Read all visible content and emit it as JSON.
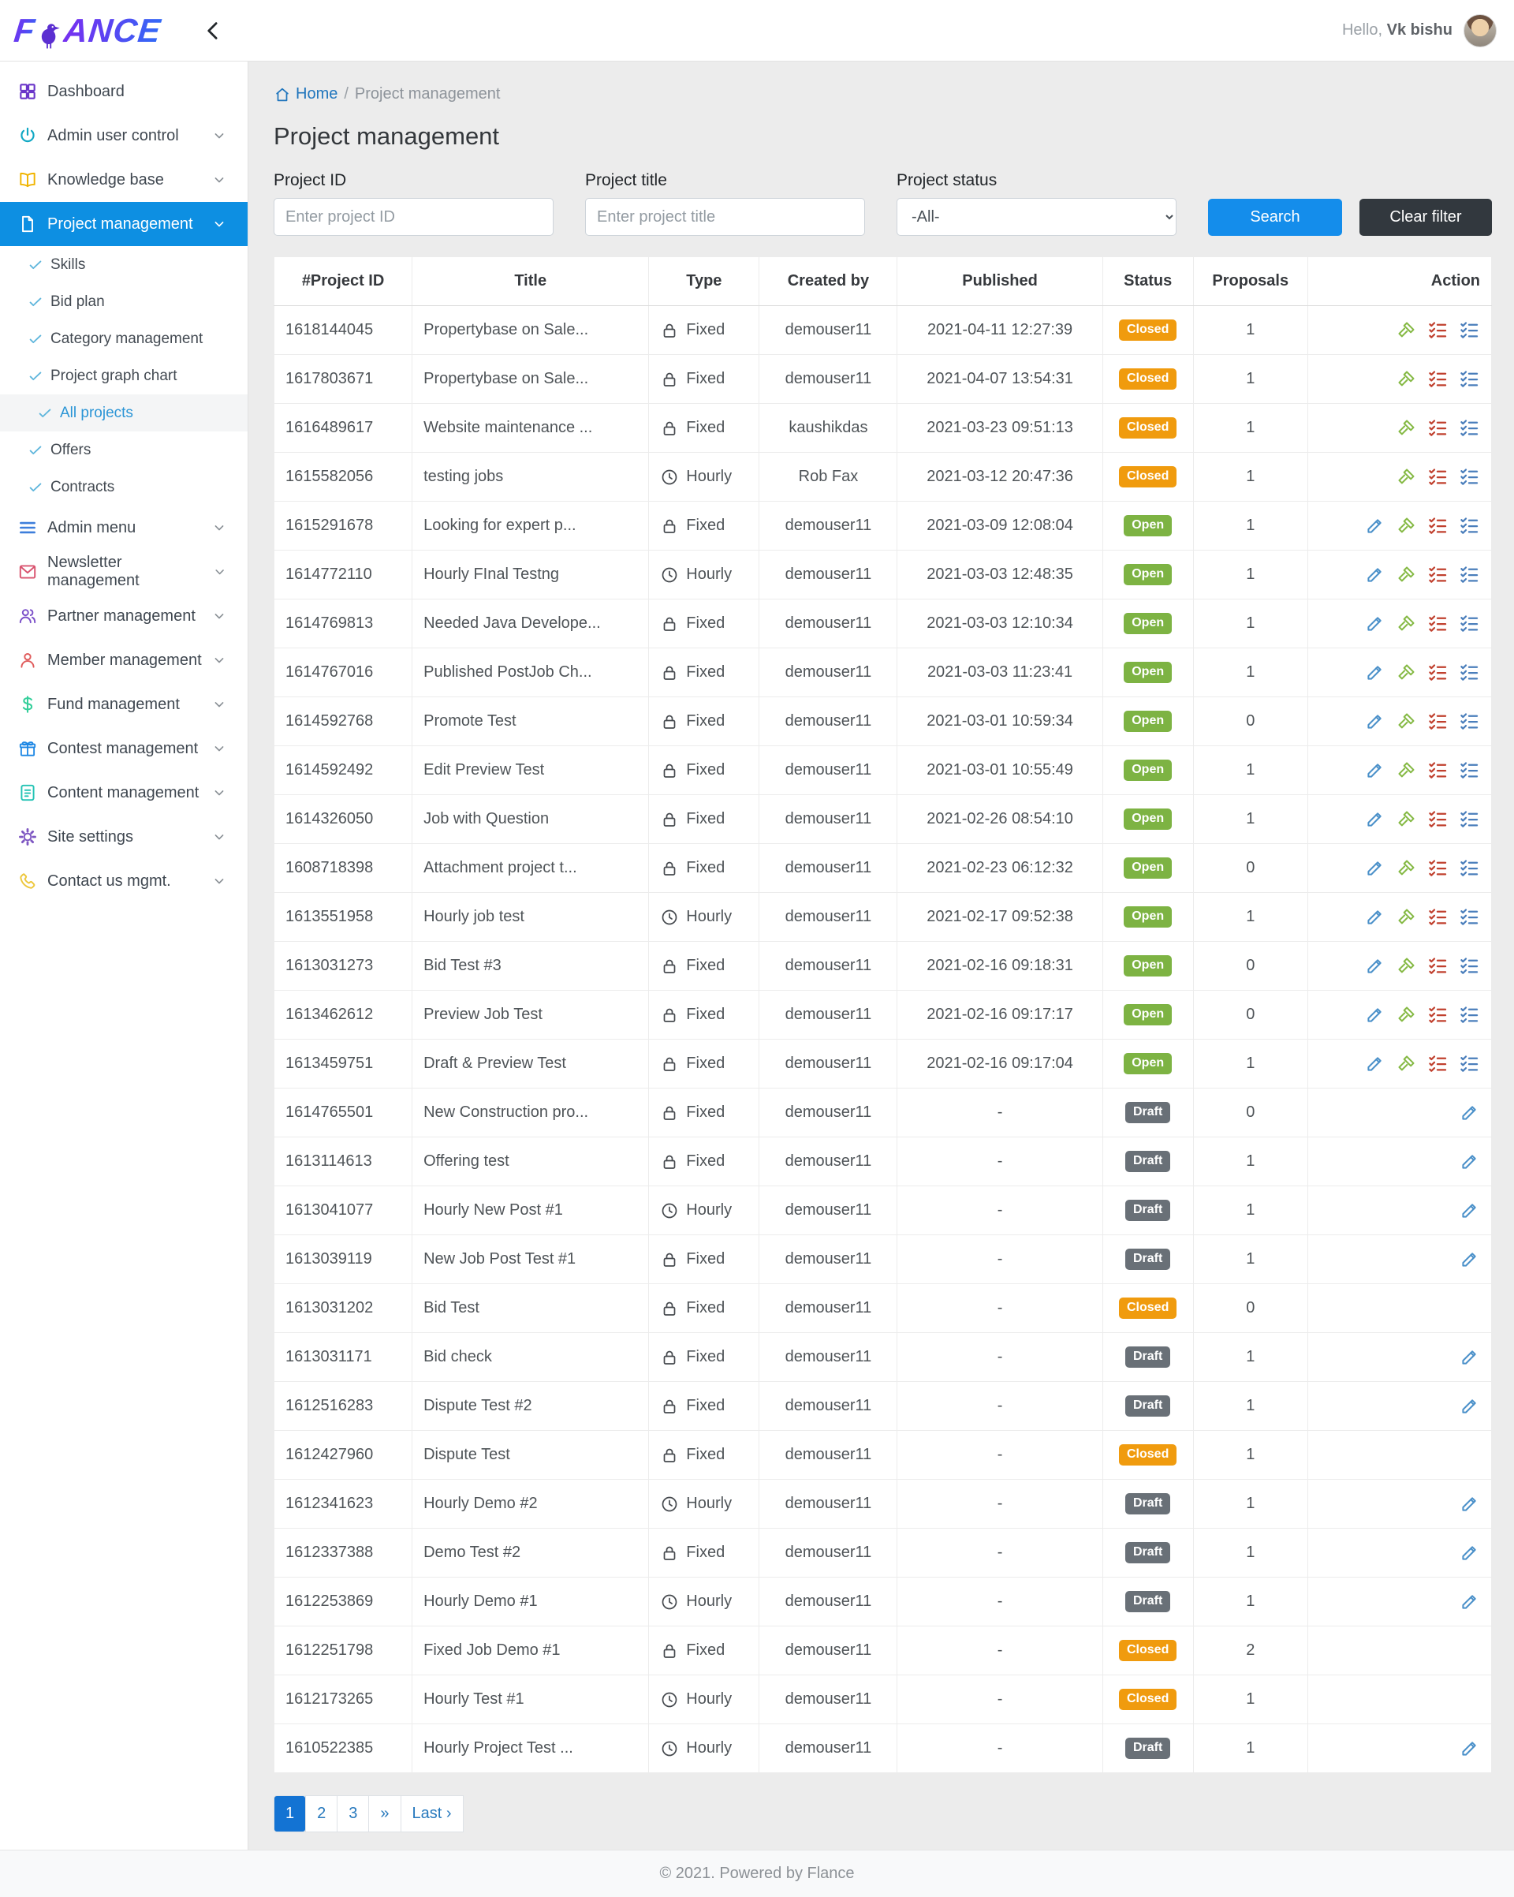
{
  "header": {
    "logo_prefix": "F",
    "logo_suffix": "ANCE",
    "greeting_prefix": "Hello, ",
    "username": "Vk bishu"
  },
  "breadcrumb": {
    "home_label": "Home",
    "separator": "/",
    "current": "Project management"
  },
  "page": {
    "title": "Project management"
  },
  "filters": {
    "project_id_label": "Project ID",
    "project_id_placeholder": "Enter project ID",
    "project_id_value": "",
    "project_title_label": "Project title",
    "project_title_placeholder": "Enter project title",
    "project_title_value": "",
    "project_status_label": "Project status",
    "project_status_value": "-All-",
    "search_label": "Search",
    "clear_label": "Clear filter"
  },
  "sidebar": {
    "items": [
      {
        "label": "Dashboard",
        "icon": "dashboard",
        "expandable": false
      },
      {
        "label": "Admin user control",
        "icon": "power",
        "expandable": true
      },
      {
        "label": "Knowledge base",
        "icon": "book",
        "expandable": true
      },
      {
        "label": "Project management",
        "icon": "file",
        "expandable": true,
        "active": true,
        "children": [
          {
            "label": "Skills"
          },
          {
            "label": "Bid plan"
          },
          {
            "label": "Category management"
          },
          {
            "label": "Project graph chart"
          },
          {
            "label": "All projects",
            "active": true
          },
          {
            "label": "Offers"
          },
          {
            "label": "Contracts"
          }
        ]
      },
      {
        "label": "Admin menu",
        "icon": "hamburger",
        "expandable": true
      },
      {
        "label": "Newsletter management",
        "icon": "mail",
        "expandable": true
      },
      {
        "label": "Partner management",
        "icon": "users",
        "expandable": true
      },
      {
        "label": "Member management",
        "icon": "user",
        "expandable": true
      },
      {
        "label": "Fund management",
        "icon": "dollar",
        "expandable": true
      },
      {
        "label": "Contest management",
        "icon": "gift",
        "expandable": true
      },
      {
        "label": "Content management",
        "icon": "document",
        "expandable": true
      },
      {
        "label": "Site settings",
        "icon": "gear",
        "expandable": true
      },
      {
        "label": "Contact us mgmt.",
        "icon": "phone",
        "expandable": true
      }
    ]
  },
  "table": {
    "columns": [
      "#Project ID",
      "Title",
      "Type",
      "Created by",
      "Published",
      "Status",
      "Proposals",
      "Action"
    ],
    "rows": [
      {
        "id": "1618144045",
        "title": "Propertybase on Sale...",
        "type": "Fixed",
        "created_by": "demouser11",
        "published": "2021-04-11 12:27:39",
        "status": "Closed",
        "proposals": "1",
        "actions": [
          "gavel",
          "checklist-red",
          "checklist-blue"
        ]
      },
      {
        "id": "1617803671",
        "title": "Propertybase on Sale...",
        "type": "Fixed",
        "created_by": "demouser11",
        "published": "2021-04-07 13:54:31",
        "status": "Closed",
        "proposals": "1",
        "actions": [
          "gavel",
          "checklist-red",
          "checklist-blue"
        ]
      },
      {
        "id": "1616489617",
        "title": "Website maintenance ...",
        "type": "Fixed",
        "created_by": "kaushikdas",
        "published": "2021-03-23 09:51:13",
        "status": "Closed",
        "proposals": "1",
        "actions": [
          "gavel",
          "checklist-red",
          "checklist-blue"
        ]
      },
      {
        "id": "1615582056",
        "title": "testing jobs",
        "type": "Hourly",
        "created_by": "Rob Fax",
        "published": "2021-03-12 20:47:36",
        "status": "Closed",
        "proposals": "1",
        "actions": [
          "gavel",
          "checklist-red",
          "checklist-blue"
        ]
      },
      {
        "id": "1615291678",
        "title": "Looking for expert p...",
        "type": "Fixed",
        "created_by": "demouser11",
        "published": "2021-03-09 12:08:04",
        "status": "Open",
        "proposals": "1",
        "actions": [
          "edit",
          "gavel",
          "checklist-red",
          "checklist-blue"
        ]
      },
      {
        "id": "1614772110",
        "title": "Hourly FInal Testng",
        "type": "Hourly",
        "created_by": "demouser11",
        "published": "2021-03-03 12:48:35",
        "status": "Open",
        "proposals": "1",
        "actions": [
          "edit",
          "gavel",
          "checklist-red",
          "checklist-blue"
        ]
      },
      {
        "id": "1614769813",
        "title": "Needed Java Develope...",
        "type": "Fixed",
        "created_by": "demouser11",
        "published": "2021-03-03 12:10:34",
        "status": "Open",
        "proposals": "1",
        "actions": [
          "edit",
          "gavel",
          "checklist-red",
          "checklist-blue"
        ]
      },
      {
        "id": "1614767016",
        "title": "Published PostJob Ch...",
        "type": "Fixed",
        "created_by": "demouser11",
        "published": "2021-03-03 11:23:41",
        "status": "Open",
        "proposals": "1",
        "actions": [
          "edit",
          "gavel",
          "checklist-red",
          "checklist-blue"
        ]
      },
      {
        "id": "1614592768",
        "title": "Promote Test",
        "type": "Fixed",
        "created_by": "demouser11",
        "published": "2021-03-01 10:59:34",
        "status": "Open",
        "proposals": "0",
        "actions": [
          "edit",
          "gavel",
          "checklist-red",
          "checklist-blue"
        ]
      },
      {
        "id": "1614592492",
        "title": "Edit Preview Test",
        "type": "Fixed",
        "created_by": "demouser11",
        "published": "2021-03-01 10:55:49",
        "status": "Open",
        "proposals": "1",
        "actions": [
          "edit",
          "gavel",
          "checklist-red",
          "checklist-blue"
        ]
      },
      {
        "id": "1614326050",
        "title": "Job with Question",
        "type": "Fixed",
        "created_by": "demouser11",
        "published": "2021-02-26 08:54:10",
        "status": "Open",
        "proposals": "1",
        "actions": [
          "edit",
          "gavel",
          "checklist-red",
          "checklist-blue"
        ]
      },
      {
        "id": "1608718398",
        "title": "Attachment project t...",
        "type": "Fixed",
        "created_by": "demouser11",
        "published": "2021-02-23 06:12:32",
        "status": "Open",
        "proposals": "0",
        "actions": [
          "edit",
          "gavel",
          "checklist-red",
          "checklist-blue"
        ]
      },
      {
        "id": "1613551958",
        "title": "Hourly job test",
        "type": "Hourly",
        "created_by": "demouser11",
        "published": "2021-02-17 09:52:38",
        "status": "Open",
        "proposals": "1",
        "actions": [
          "edit",
          "gavel",
          "checklist-red",
          "checklist-blue"
        ]
      },
      {
        "id": "1613031273",
        "title": "Bid Test #3",
        "type": "Fixed",
        "created_by": "demouser11",
        "published": "2021-02-16 09:18:31",
        "status": "Open",
        "proposals": "0",
        "actions": [
          "edit",
          "gavel",
          "checklist-red",
          "checklist-blue"
        ]
      },
      {
        "id": "1613462612",
        "title": "Preview Job Test",
        "type": "Fixed",
        "created_by": "demouser11",
        "published": "2021-02-16 09:17:17",
        "status": "Open",
        "proposals": "0",
        "actions": [
          "edit",
          "gavel",
          "checklist-red",
          "checklist-blue"
        ]
      },
      {
        "id": "1613459751",
        "title": "Draft & Preview Test",
        "type": "Fixed",
        "created_by": "demouser11",
        "published": "2021-02-16 09:17:04",
        "status": "Open",
        "proposals": "1",
        "actions": [
          "edit",
          "gavel",
          "checklist-red",
          "checklist-blue"
        ]
      },
      {
        "id": "1614765501",
        "title": "New Construction pro...",
        "type": "Fixed",
        "created_by": "demouser11",
        "published": "-",
        "status": "Draft",
        "proposals": "0",
        "actions": [
          "edit"
        ]
      },
      {
        "id": "1613114613",
        "title": "Offering test",
        "type": "Fixed",
        "created_by": "demouser11",
        "published": "-",
        "status": "Draft",
        "proposals": "1",
        "actions": [
          "edit"
        ]
      },
      {
        "id": "1613041077",
        "title": "Hourly New Post #1",
        "type": "Hourly",
        "created_by": "demouser11",
        "published": "-",
        "status": "Draft",
        "proposals": "1",
        "actions": [
          "edit"
        ]
      },
      {
        "id": "1613039119",
        "title": "New Job Post Test #1",
        "type": "Fixed",
        "created_by": "demouser11",
        "published": "-",
        "status": "Draft",
        "proposals": "1",
        "actions": [
          "edit"
        ]
      },
      {
        "id": "1613031202",
        "title": "Bid Test",
        "type": "Fixed",
        "created_by": "demouser11",
        "published": "-",
        "status": "Closed",
        "proposals": "0",
        "actions": []
      },
      {
        "id": "1613031171",
        "title": "Bid check",
        "type": "Fixed",
        "created_by": "demouser11",
        "published": "-",
        "status": "Draft",
        "proposals": "1",
        "actions": [
          "edit"
        ]
      },
      {
        "id": "1612516283",
        "title": "Dispute Test #2",
        "type": "Fixed",
        "created_by": "demouser11",
        "published": "-",
        "status": "Draft",
        "proposals": "1",
        "actions": [
          "edit"
        ]
      },
      {
        "id": "1612427960",
        "title": "Dispute Test",
        "type": "Fixed",
        "created_by": "demouser11",
        "published": "-",
        "status": "Closed",
        "proposals": "1",
        "actions": []
      },
      {
        "id": "1612341623",
        "title": "Hourly Demo #2",
        "type": "Hourly",
        "created_by": "demouser11",
        "published": "-",
        "status": "Draft",
        "proposals": "1",
        "actions": [
          "edit"
        ]
      },
      {
        "id": "1612337388",
        "title": "Demo Test #2",
        "type": "Fixed",
        "created_by": "demouser11",
        "published": "-",
        "status": "Draft",
        "proposals": "1",
        "actions": [
          "edit"
        ]
      },
      {
        "id": "1612253869",
        "title": "Hourly Demo #1",
        "type": "Hourly",
        "created_by": "demouser11",
        "published": "-",
        "status": "Draft",
        "proposals": "1",
        "actions": [
          "edit"
        ]
      },
      {
        "id": "1612251798",
        "title": "Fixed Job Demo #1",
        "type": "Fixed",
        "created_by": "demouser11",
        "published": "-",
        "status": "Closed",
        "proposals": "2",
        "actions": []
      },
      {
        "id": "1612173265",
        "title": "Hourly Test #1",
        "type": "Hourly",
        "created_by": "demouser11",
        "published": "-",
        "status": "Closed",
        "proposals": "1",
        "actions": []
      },
      {
        "id": "1610522385",
        "title": "Hourly Project Test ...",
        "type": "Hourly",
        "created_by": "demouser11",
        "published": "-",
        "status": "Draft",
        "proposals": "1",
        "actions": [
          "edit"
        ]
      }
    ]
  },
  "pagination": {
    "pages": [
      "1",
      "2",
      "3"
    ],
    "active_page": "1",
    "next_label": "»",
    "last_label": "Last ›"
  },
  "footer": {
    "text": "© 2021. Powered by Flance"
  },
  "colors": {
    "primary_blue": "#148deb",
    "active_nav_blue": "#0d8fe2",
    "status_open": "#7db343",
    "status_closed": "#f09b0e",
    "status_draft": "#697077",
    "pagination_active": "#1373d3"
  }
}
